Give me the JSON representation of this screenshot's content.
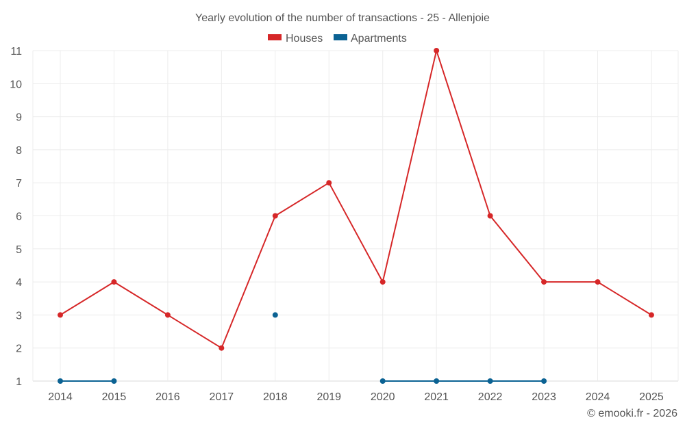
{
  "chart_data": {
    "type": "line",
    "title": "Yearly evolution of the number of transactions - 25 - Allenjoie",
    "categories": [
      "2014",
      "2015",
      "2016",
      "2017",
      "2018",
      "2019",
      "2020",
      "2021",
      "2022",
      "2023",
      "2024",
      "2025"
    ],
    "series": [
      {
        "name": "Houses",
        "color": "#d62728",
        "values": [
          3,
          4,
          3,
          2,
          6,
          7,
          4,
          11,
          6,
          4,
          4,
          3
        ]
      },
      {
        "name": "Apartments",
        "color": "#0b6293",
        "values": [
          1,
          1,
          null,
          null,
          3,
          null,
          1,
          1,
          1,
          1,
          null,
          null
        ]
      }
    ],
    "ylim": [
      1,
      11
    ],
    "yticks": [
      "1",
      "2",
      "3",
      "4",
      "5",
      "6",
      "7",
      "8",
      "9",
      "10",
      "11"
    ],
    "grid": true,
    "legend": "top-center"
  },
  "footer": {
    "credit": "© emooki.fr - 2026"
  }
}
